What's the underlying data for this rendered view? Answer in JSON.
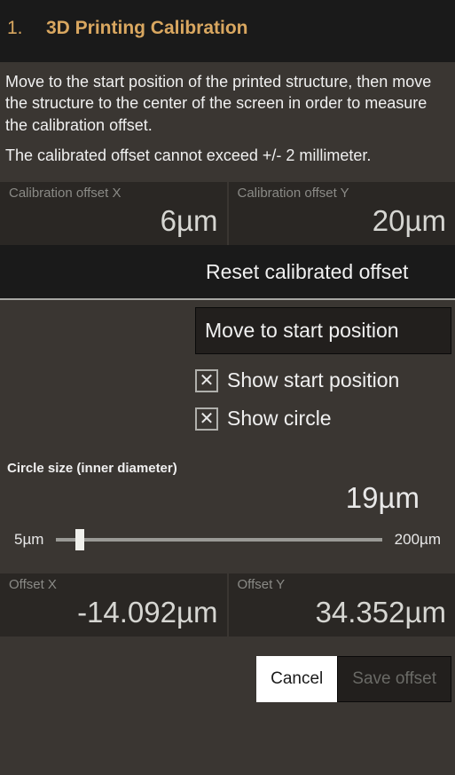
{
  "header": {
    "number": "1.",
    "title": "3D Printing Calibration"
  },
  "instructions": {
    "line1": "Move to the start position of the printed structure, then move the structure to the center of the screen in order to measure the calibration offset.",
    "line2": "The calibrated offset cannot exceed +/- 2 millimeter."
  },
  "cal_offset_x": {
    "label": "Calibration offset X",
    "value": "6µm"
  },
  "cal_offset_y": {
    "label": "Calibration offset Y",
    "value": "20µm"
  },
  "reset_btn": "Reset calibrated offset",
  "move_btn": "Move to start position",
  "checks": {
    "show_start": {
      "label": "Show start position",
      "checked": true
    },
    "show_circle": {
      "label": "Show circle",
      "checked": true
    }
  },
  "circle": {
    "title": "Circle size (inner diameter)",
    "value": "19µm",
    "min": "5µm",
    "max": "200µm",
    "thumb_pct": 6
  },
  "offset_x": {
    "label": "Offset X",
    "value": "-14.092µm"
  },
  "offset_y": {
    "label": "Offset Y",
    "value": "34.352µm"
  },
  "buttons": {
    "cancel": "Cancel",
    "save": "Save offset"
  },
  "colors": {
    "bg": "#3a3632",
    "panel": "#2a2724",
    "dark": "#1a1a1a",
    "accent": "#d9a760",
    "text": "#e8e8e8",
    "muted": "#8a8a86"
  }
}
